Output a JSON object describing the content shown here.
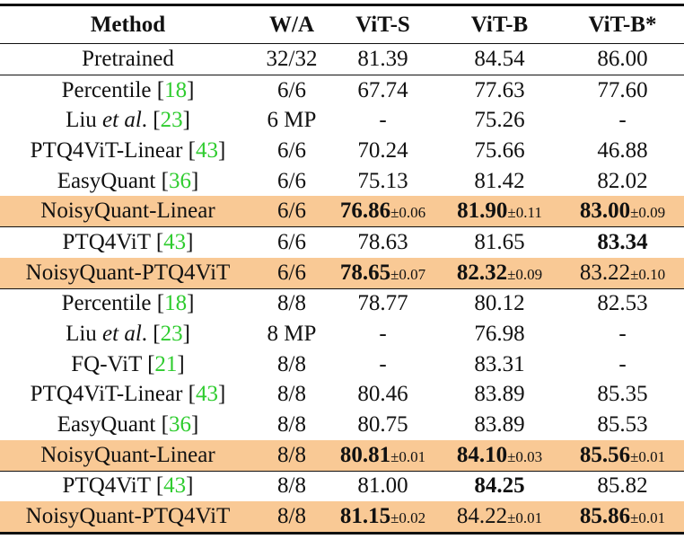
{
  "table": {
    "headers": [
      "Method",
      "W/A",
      "ViT-S",
      "ViT-B",
      "ViT-B*"
    ],
    "highlight_color": "#f9c995",
    "ref_color": "#2fcc2f",
    "rows": [
      {
        "method": "Pretrained",
        "ref": "",
        "wa": "32/32",
        "c": [
          {
            "v": "81.39"
          },
          {
            "v": "84.54"
          },
          {
            "v": "86.00"
          }
        ],
        "hl": false,
        "rule": true
      },
      {
        "method": "Percentile ",
        "ref": "18",
        "wa": "6/6",
        "c": [
          {
            "v": "67.74"
          },
          {
            "v": "77.63"
          },
          {
            "v": "77.60"
          }
        ]
      },
      {
        "method": "Liu et al. ",
        "ref": "23",
        "wa": "6 MP",
        "c": [
          {
            "v": "-"
          },
          {
            "v": "75.26"
          },
          {
            "v": "-"
          }
        ]
      },
      {
        "method": "PTQ4ViT-Linear ",
        "ref": "43",
        "wa": "6/6",
        "c": [
          {
            "v": "70.24"
          },
          {
            "v": "75.66"
          },
          {
            "v": "46.88"
          }
        ]
      },
      {
        "method": "EasyQuant ",
        "ref": "36",
        "wa": "6/6",
        "c": [
          {
            "v": "75.13"
          },
          {
            "v": "81.42"
          },
          {
            "v": "82.02"
          }
        ]
      },
      {
        "method": "NoisyQuant-Linear",
        "ref": "",
        "wa": "6/6",
        "c": [
          {
            "v": "76.86",
            "pm": "±0.06",
            "b": true
          },
          {
            "v": "81.90",
            "pm": "±0.11",
            "b": true
          },
          {
            "v": "83.00",
            "pm": "±0.09",
            "b": true
          }
        ],
        "hl": true,
        "rule": true
      },
      {
        "method": "PTQ4ViT ",
        "ref": "43",
        "wa": "6/6",
        "c": [
          {
            "v": "78.63"
          },
          {
            "v": "81.65"
          },
          {
            "v": "83.34",
            "b": true
          }
        ]
      },
      {
        "method": "NoisyQuant-PTQ4ViT",
        "ref": "",
        "wa": "6/6",
        "c": [
          {
            "v": "78.65",
            "pm": "±0.07",
            "b": true
          },
          {
            "v": "82.32",
            "pm": "±0.09",
            "b": true
          },
          {
            "v": "83.22",
            "pm": "±0.10"
          }
        ],
        "hl": true,
        "rule": true
      },
      {
        "method": "Percentile ",
        "ref": "18",
        "wa": "8/8",
        "c": [
          {
            "v": "78.77"
          },
          {
            "v": "80.12"
          },
          {
            "v": "82.53"
          }
        ]
      },
      {
        "method": "Liu et al. ",
        "ref": "23",
        "wa": "8 MP",
        "c": [
          {
            "v": "-"
          },
          {
            "v": "76.98"
          },
          {
            "v": "-"
          }
        ]
      },
      {
        "method": "FQ-ViT ",
        "ref": "21",
        "wa": "8/8",
        "c": [
          {
            "v": "-"
          },
          {
            "v": "83.31"
          },
          {
            "v": "-"
          }
        ]
      },
      {
        "method": "PTQ4ViT-Linear ",
        "ref": "43",
        "wa": "8/8",
        "c": [
          {
            "v": "80.46"
          },
          {
            "v": "83.89"
          },
          {
            "v": "85.35"
          }
        ]
      },
      {
        "method": "EasyQuant ",
        "ref": "36",
        "wa": "8/8",
        "c": [
          {
            "v": "80.75"
          },
          {
            "v": "83.89"
          },
          {
            "v": "85.53"
          }
        ]
      },
      {
        "method": "NoisyQuant-Linear",
        "ref": "",
        "wa": "8/8",
        "c": [
          {
            "v": "80.81",
            "pm": "±0.01",
            "b": true
          },
          {
            "v": "84.10",
            "pm": "±0.03",
            "b": true
          },
          {
            "v": "85.56",
            "pm": "±0.01",
            "b": true
          }
        ],
        "hl": true,
        "rule": true
      },
      {
        "method": "PTQ4ViT ",
        "ref": "43",
        "wa": "8/8",
        "c": [
          {
            "v": "81.00"
          },
          {
            "v": "84.25",
            "b": true
          },
          {
            "v": "85.82"
          }
        ]
      },
      {
        "method": "NoisyQuant-PTQ4ViT",
        "ref": "",
        "wa": "8/8",
        "c": [
          {
            "v": "81.15",
            "pm": "±0.02",
            "b": true
          },
          {
            "v": "84.22",
            "pm": "±0.01"
          },
          {
            "v": "85.86",
            "pm": "±0.01",
            "b": true
          }
        ],
        "hl": true,
        "last": true
      }
    ]
  }
}
